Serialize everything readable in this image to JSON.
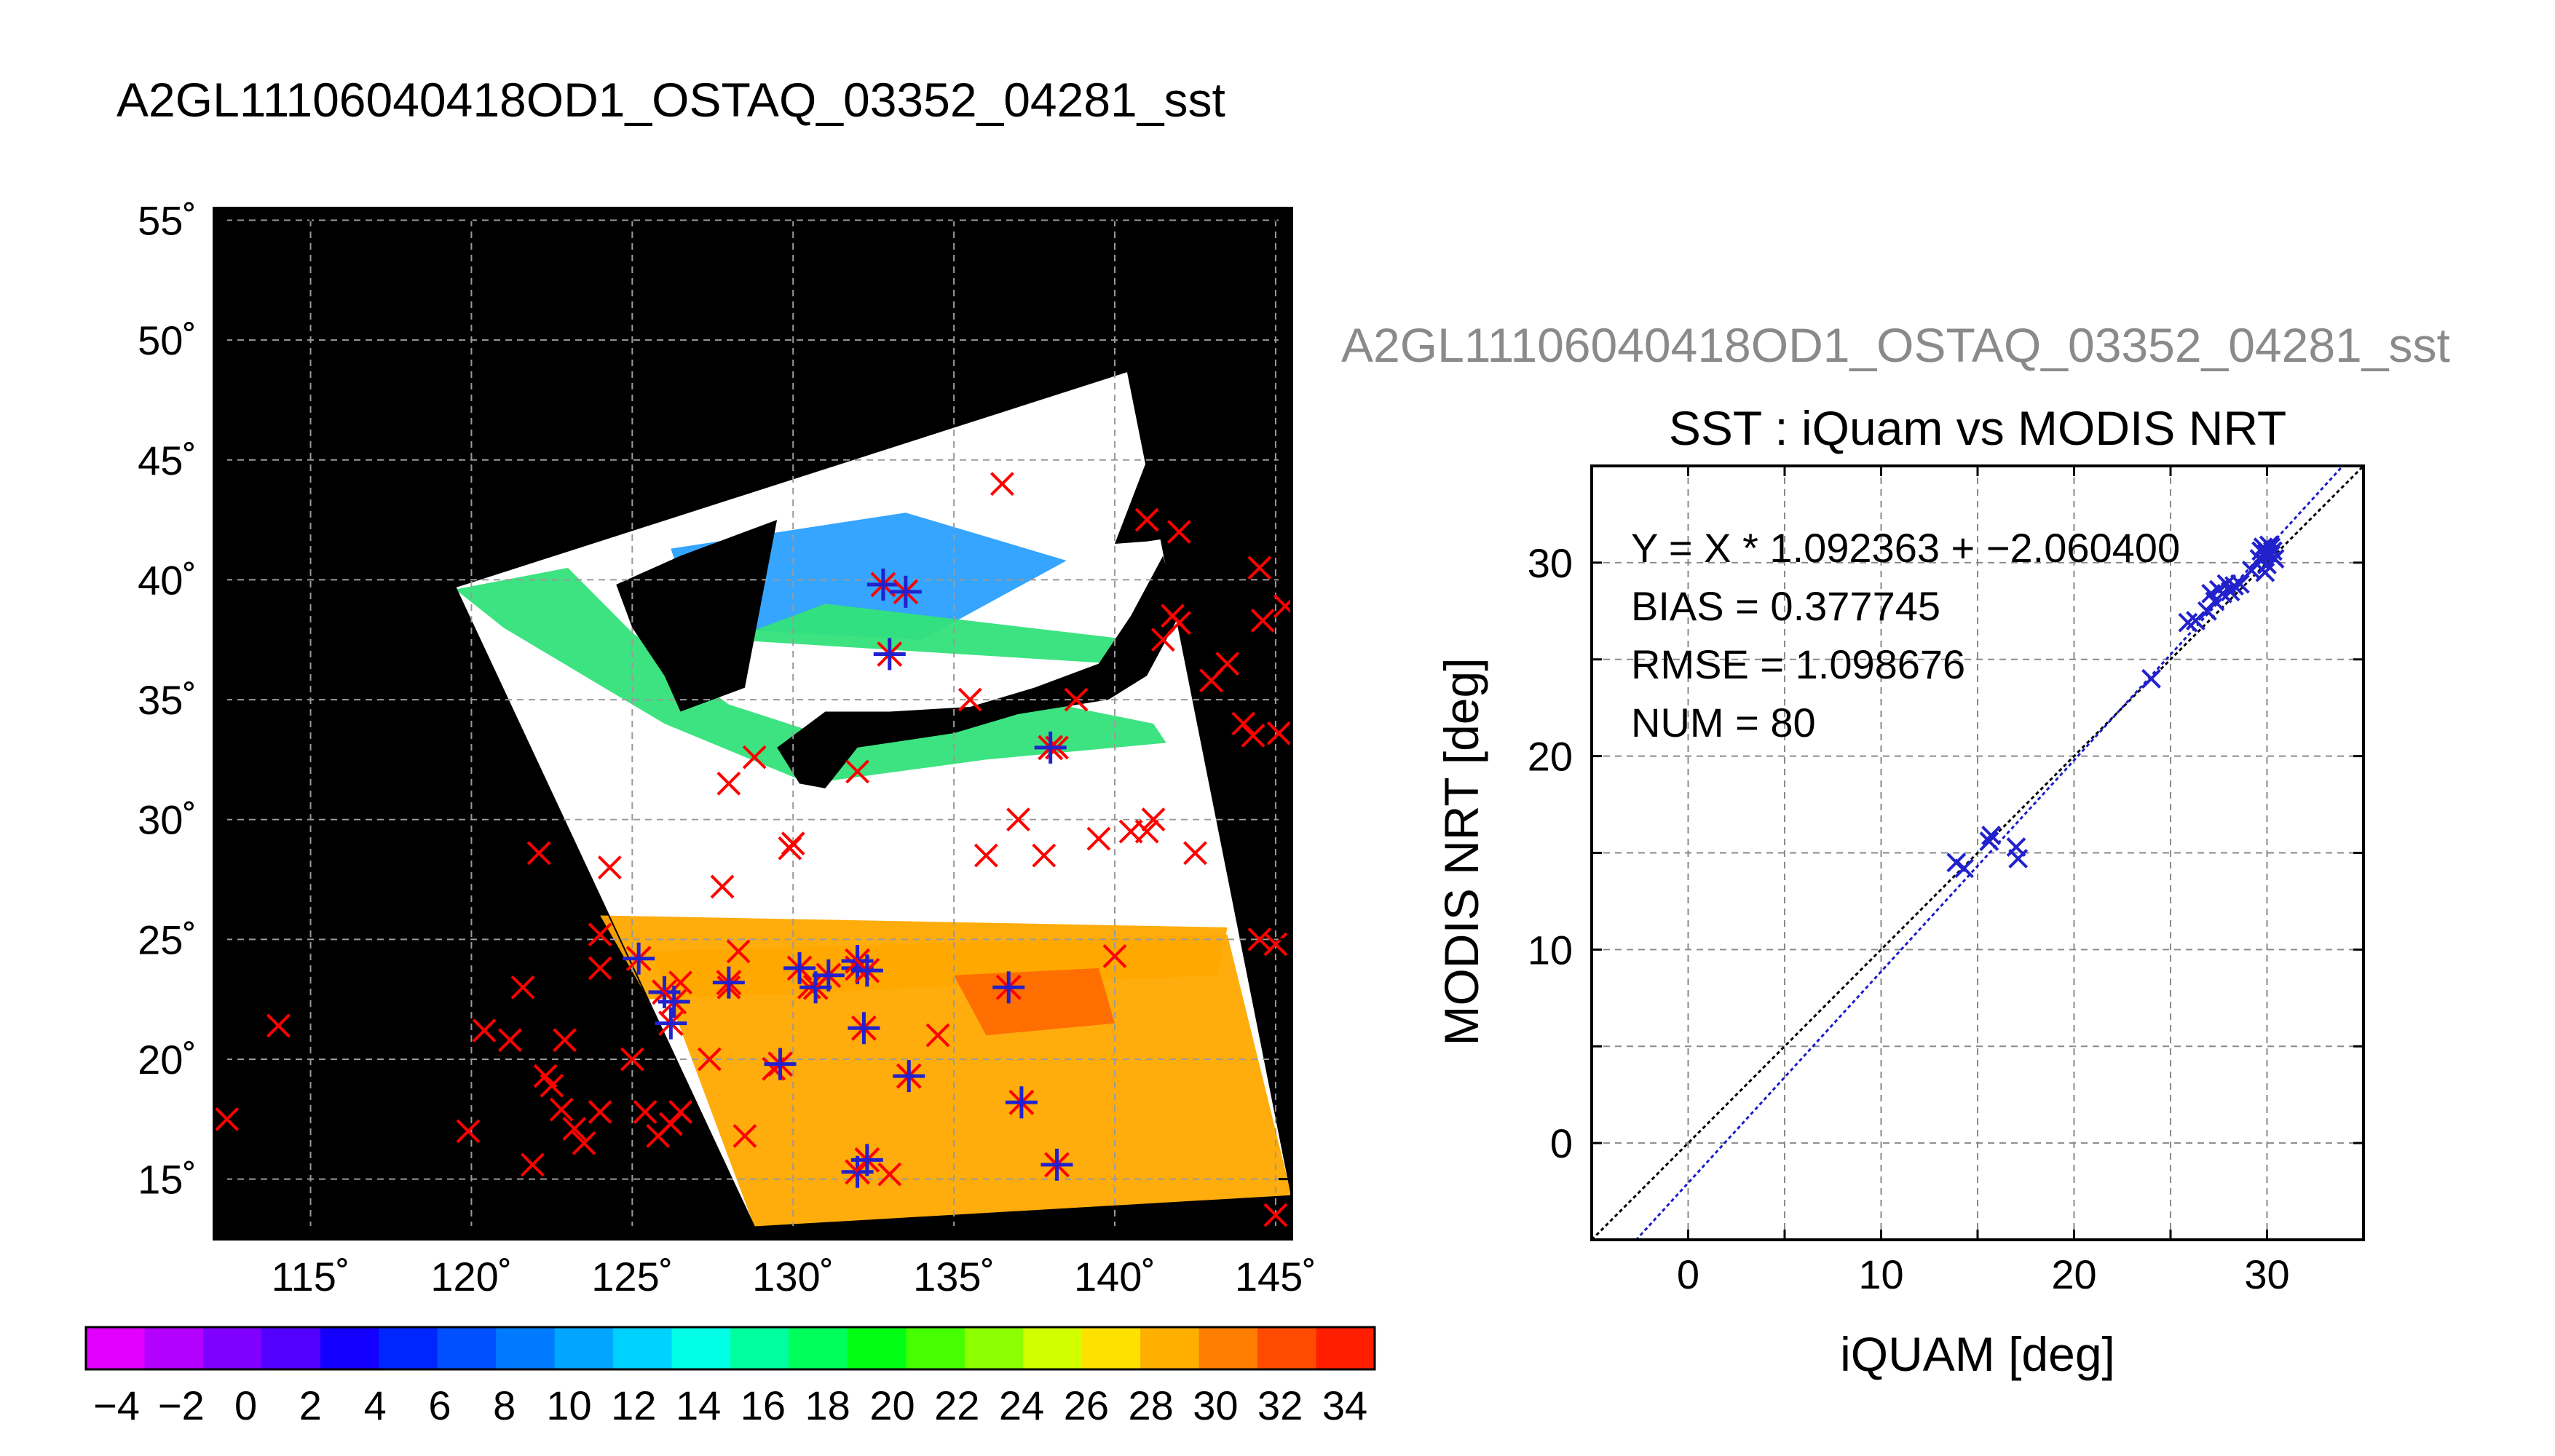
{
  "map_title": "A2GL11106040418OD1_OSTAQ_03352_04281_sst",
  "scatter_header": "A2GL11106040418OD1_OSTAQ_03352_04281_sst",
  "colors": {
    "land": "#000000",
    "cloud": "#ffffff",
    "iquam_marker": "#ff0000",
    "matched_marker": "#2222cc",
    "one_to_one_line": "#000000",
    "fit_line": "#1a1acc",
    "sea_cool": "#2aa0ff",
    "sea_mid": "#33e27a",
    "sea_warm": "#ffa800",
    "sea_hot": "#ff6a00"
  },
  "colorbar": {
    "tick_labels": [
      "−4",
      "−2",
      "0",
      "2",
      "4",
      "6",
      "8",
      "10",
      "12",
      "14",
      "16",
      "18",
      "20",
      "22",
      "24",
      "26",
      "28",
      "30",
      "32",
      "34"
    ],
    "colors": [
      "#e100ff",
      "#b400ff",
      "#8000ff",
      "#5200ff",
      "#1400ff",
      "#0026ff",
      "#0050ff",
      "#007aff",
      "#00a6ff",
      "#00d2ff",
      "#00ffe6",
      "#00ff9e",
      "#00ff5a",
      "#00ff14",
      "#46ff00",
      "#8cff00",
      "#d2ff00",
      "#ffe100",
      "#ffaf00",
      "#ff7d00",
      "#ff4b00",
      "#ff1e00"
    ]
  },
  "chart_data": [
    {
      "type": "scatter",
      "title": "",
      "xlim": [
        112,
        145.5
      ],
      "ylim": [
        12.5,
        55.5
      ],
      "x_ticks": [
        115,
        120,
        125,
        130,
        135,
        140,
        145
      ],
      "y_ticks": [
        15,
        20,
        25,
        30,
        35,
        40,
        45,
        50,
        55
      ],
      "x_tick_labels": [
        "115˚",
        "120˚",
        "125˚",
        "130˚",
        "135˚",
        "140˚",
        "145˚"
      ],
      "y_tick_labels": [
        "15˚",
        "20˚",
        "25˚",
        "30˚",
        "35˚",
        "40˚",
        "45˚",
        "50˚",
        "55˚"
      ],
      "grid": true,
      "swath": [
        [
          119.5,
          39.7
        ],
        [
          140.4,
          48.7
        ],
        [
          145.5,
          14.3
        ],
        [
          128.8,
          13.0
        ]
      ],
      "series": [
        {
          "marker": "x",
          "points": [
            [
              112.4,
              17.5
            ],
            [
              114.0,
              21.4
            ],
            [
              119.9,
              17.0
            ],
            [
              120.4,
              21.2
            ],
            [
              121.2,
              20.8
            ],
            [
              121.6,
              23.0
            ],
            [
              121.9,
              15.6
            ],
            [
              122.1,
              28.6
            ],
            [
              122.3,
              19.3
            ],
            [
              122.5,
              18.9
            ],
            [
              122.8,
              17.9
            ],
            [
              122.9,
              20.8
            ],
            [
              123.2,
              17.1
            ],
            [
              123.5,
              16.5
            ],
            [
              124.0,
              17.8
            ],
            [
              124.0,
              23.8
            ],
            [
              124.0,
              25.2
            ],
            [
              124.3,
              28.0
            ],
            [
              125.0,
              20.0
            ],
            [
              125.4,
              17.8
            ],
            [
              125.8,
              16.8
            ],
            [
              126.2,
              17.3
            ],
            [
              126.5,
              17.8
            ],
            [
              126.5,
              23.2
            ],
            [
              127.4,
              20.0
            ],
            [
              127.8,
              27.2
            ],
            [
              128.0,
              23.0
            ],
            [
              128.3,
              24.5
            ],
            [
              128.0,
              31.5
            ],
            [
              128.5,
              16.8
            ],
            [
              128.8,
              32.6
            ],
            [
              129.4,
              19.6
            ],
            [
              129.9,
              28.8
            ],
            [
              130.0,
              29.0
            ],
            [
              130.5,
              23.0
            ],
            [
              132.0,
              32.0
            ],
            [
              133.0,
              15.2
            ],
            [
              134.5,
              21.0
            ],
            [
              135.5,
              35.0
            ],
            [
              136.0,
              28.5
            ],
            [
              136.5,
              44.0
            ],
            [
              137.0,
              30.0
            ],
            [
              137.8,
              28.5
            ],
            [
              138.2,
              33.0
            ],
            [
              138.8,
              35.0
            ],
            [
              139.5,
              29.2
            ],
            [
              140.0,
              24.3
            ],
            [
              140.5,
              29.5
            ],
            [
              141.0,
              29.5
            ],
            [
              141.2,
              30.0
            ],
            [
              141.5,
              37.5
            ],
            [
              141.8,
              38.5
            ],
            [
              141.0,
              42.5
            ],
            [
              142.0,
              42.0
            ],
            [
              142.5,
              28.6
            ],
            [
              142.0,
              38.2
            ],
            [
              143.0,
              35.8
            ],
            [
              143.5,
              36.5
            ],
            [
              144.0,
              34.0
            ],
            [
              144.3,
              33.5
            ],
            [
              144.5,
              25.0
            ],
            [
              144.5,
              40.5
            ],
            [
              144.6,
              38.3
            ],
            [
              145.0,
              24.8
            ],
            [
              145.1,
              33.6
            ],
            [
              145.3,
              38.9
            ],
            [
              145.0,
              13.5
            ]
          ]
        },
        {
          "marker": "asterisk",
          "points": [
            [
              125.2,
              24.2
            ],
            [
              126.0,
              22.8
            ],
            [
              126.3,
              22.4
            ],
            [
              126.2,
              21.5
            ],
            [
              128.0,
              23.2
            ],
            [
              129.6,
              19.8
            ],
            [
              130.2,
              23.8
            ],
            [
              130.7,
              23.0
            ],
            [
              131.1,
              23.5
            ],
            [
              132.0,
              23.8
            ],
            [
              132.0,
              24.1
            ],
            [
              132.3,
              23.7
            ],
            [
              132.2,
              21.3
            ],
            [
              132.8,
              39.8
            ],
            [
              133.0,
              36.9
            ],
            [
              133.5,
              39.5
            ],
            [
              133.6,
              19.3
            ],
            [
              132.0,
              15.3
            ],
            [
              132.3,
              15.8
            ],
            [
              136.7,
              23.0
            ],
            [
              137.1,
              18.2
            ],
            [
              138.2,
              15.6
            ],
            [
              138.0,
              33.0
            ]
          ]
        }
      ]
    },
    {
      "type": "scatter",
      "title": "SST : iQuam vs MODIS NRT",
      "xlabel": "iQUAM [deg]",
      "ylabel": "MODIS NRT [deg]",
      "xlim": [
        -5,
        35
      ],
      "ylim": [
        -5,
        35
      ],
      "x_ticks": [
        0,
        10,
        20,
        30
      ],
      "y_ticks": [
        0,
        10,
        20,
        30
      ],
      "x_tick_labels": [
        "0",
        "10",
        "20",
        "30"
      ],
      "y_tick_labels": [
        "0",
        "10",
        "20",
        "30"
      ],
      "grid": true,
      "annotations": [
        "Y = X * 1.092363 + −2.060400",
        "BIAS = 0.377745",
        "RMSE = 1.098676",
        "NUM = 80"
      ],
      "fit": {
        "slope": 1.092363,
        "intercept": -2.0604
      },
      "points": [
        [
          13.9,
          14.5
        ],
        [
          14.3,
          14.2
        ],
        [
          15.6,
          15.6
        ],
        [
          15.7,
          15.9
        ],
        [
          17.0,
          15.3
        ],
        [
          17.1,
          14.7
        ],
        [
          24.0,
          24.0
        ],
        [
          25.9,
          26.9
        ],
        [
          26.3,
          27.0
        ],
        [
          26.9,
          27.5
        ],
        [
          27.1,
          28.4
        ],
        [
          27.3,
          28.0
        ],
        [
          27.5,
          28.6
        ],
        [
          27.7,
          28.4
        ],
        [
          27.9,
          28.9
        ],
        [
          28.1,
          28.5
        ],
        [
          28.3,
          28.8
        ],
        [
          28.6,
          28.9
        ],
        [
          29.2,
          29.6
        ],
        [
          29.6,
          30.2
        ],
        [
          29.8,
          30.8
        ],
        [
          29.9,
          29.5
        ],
        [
          30.0,
          30.5
        ],
        [
          30.1,
          30.9
        ],
        [
          30.2,
          30.4
        ],
        [
          30.3,
          30.6
        ],
        [
          30.4,
          30.2
        ],
        [
          30.0,
          29.9
        ],
        [
          29.7,
          30.6
        ],
        [
          30.2,
          30.8
        ]
      ]
    }
  ]
}
